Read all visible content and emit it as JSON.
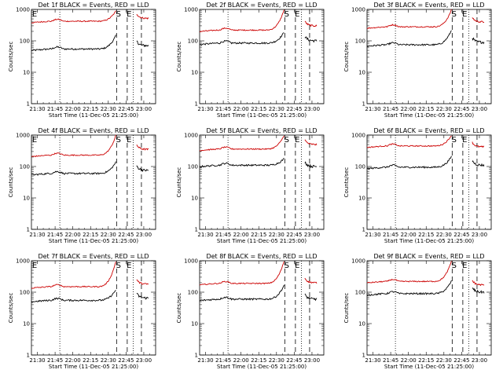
{
  "chart_data": {
    "type": "line",
    "layout": "3x3 grid",
    "xlabel": "Start Time (11-Dec-05 21:25:00)",
    "ylabel": "Counts/sec",
    "y_scale": "log",
    "ylim": [
      1,
      1000
    ],
    "ytick_labels": [
      "1",
      "10",
      "100",
      "1000"
    ],
    "xlim_minutes": [
      -5,
      100
    ],
    "xtick_labels": [
      "21:30",
      "21:45",
      "22:00",
      "22:15",
      "22:30",
      "22:45",
      "23:00"
    ],
    "colors": {
      "events": "#000000",
      "lld": "#cc0000"
    },
    "panels": [
      {
        "title": "Det 1f BLACK = Events, RED = LLD",
        "markers": [
          "E",
          "S",
          "E"
        ],
        "events_level": 55,
        "lld_level": 420,
        "events_peak": 150,
        "lld_peak": 900,
        "events_after": 70,
        "lld_after": 520
      },
      {
        "title": "Det 2f BLACK = Events, RED = LLD",
        "markers": [
          "",
          "S",
          "E"
        ],
        "events_level": 85,
        "lld_level": 220,
        "events_peak": 190,
        "lld_peak": 1000,
        "events_after": 100,
        "lld_after": 300
      },
      {
        "title": "Det 3f BLACK = Events, RED = LLD",
        "markers": [
          "",
          "S",
          "E"
        ],
        "events_level": 75,
        "lld_level": 280,
        "events_peak": 220,
        "lld_peak": 1000,
        "events_after": 90,
        "lld_after": 400
      },
      {
        "title": "Det 4f BLACK = Events, RED = LLD",
        "markers": [
          "E",
          "S",
          "E"
        ],
        "events_level": 60,
        "lld_level": 230,
        "events_peak": 140,
        "lld_peak": 1000,
        "events_after": 75,
        "lld_after": 350
      },
      {
        "title": "Det 5f BLACK = Events, RED = LLD",
        "markers": [
          "",
          "S",
          "E"
        ],
        "events_level": 110,
        "lld_level": 360,
        "events_peak": 180,
        "lld_peak": 1000,
        "events_after": 100,
        "lld_after": 500
      },
      {
        "title": "Det 6f BLACK = Events, RED = LLD",
        "markers": [
          "",
          "S",
          "E"
        ],
        "events_level": 95,
        "lld_level": 450,
        "events_peak": 210,
        "lld_peak": 1000,
        "events_after": 110,
        "lld_after": 420
      },
      {
        "title": "Det 7f BLACK = Events, RED = LLD",
        "markers": [
          "E",
          "S",
          "E"
        ],
        "events_level": 55,
        "lld_level": 150,
        "events_peak": 120,
        "lld_peak": 1000,
        "events_after": 65,
        "lld_after": 180
      },
      {
        "title": "Det 8f BLACK = Events, RED = LLD",
        "markers": [
          "",
          "S",
          "E"
        ],
        "events_level": 60,
        "lld_level": 190,
        "events_peak": 170,
        "lld_peak": 1000,
        "events_after": 60,
        "lld_after": 200
      },
      {
        "title": "Det 9f BLACK = Events, RED = LLD",
        "markers": [
          "",
          "S",
          "E"
        ],
        "events_level": 90,
        "lld_level": 220,
        "events_peak": 230,
        "lld_peak": 1000,
        "events_after": 100,
        "lld_after": 170
      }
    ],
    "vertical_lines": [
      {
        "style": "dotted",
        "minute": 19
      },
      {
        "style": "dashed",
        "minute": 67
      },
      {
        "style": "dashed",
        "minute": 76
      },
      {
        "style": "dotted",
        "minute": 81
      },
      {
        "style": "dashed",
        "minute": 88
      }
    ]
  }
}
